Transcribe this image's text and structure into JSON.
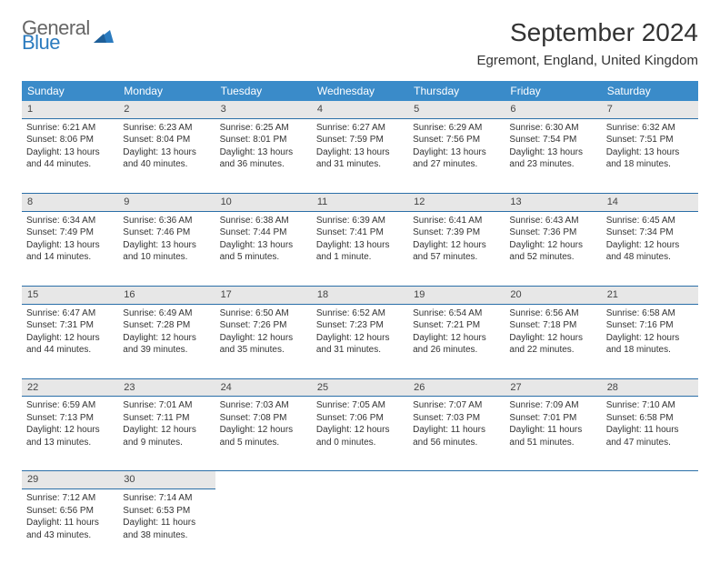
{
  "logo": {
    "line1": "General",
    "line2": "Blue"
  },
  "title": "September 2024",
  "location": "Egremont, England, United Kingdom",
  "colors": {
    "header_bg": "#3a8bc9",
    "daynum_bg": "#e7e7e7",
    "row_border": "#2b6fa8",
    "logo_accent": "#2b7bbf"
  },
  "weekdays": [
    "Sunday",
    "Monday",
    "Tuesday",
    "Wednesday",
    "Thursday",
    "Friday",
    "Saturday"
  ],
  "weeks": [
    {
      "nums": [
        "1",
        "2",
        "3",
        "4",
        "5",
        "6",
        "7"
      ],
      "cells": [
        {
          "sr": "Sunrise: 6:21 AM",
          "ss": "Sunset: 8:06 PM",
          "d1": "Daylight: 13 hours",
          "d2": "and 44 minutes."
        },
        {
          "sr": "Sunrise: 6:23 AM",
          "ss": "Sunset: 8:04 PM",
          "d1": "Daylight: 13 hours",
          "d2": "and 40 minutes."
        },
        {
          "sr": "Sunrise: 6:25 AM",
          "ss": "Sunset: 8:01 PM",
          "d1": "Daylight: 13 hours",
          "d2": "and 36 minutes."
        },
        {
          "sr": "Sunrise: 6:27 AM",
          "ss": "Sunset: 7:59 PM",
          "d1": "Daylight: 13 hours",
          "d2": "and 31 minutes."
        },
        {
          "sr": "Sunrise: 6:29 AM",
          "ss": "Sunset: 7:56 PM",
          "d1": "Daylight: 13 hours",
          "d2": "and 27 minutes."
        },
        {
          "sr": "Sunrise: 6:30 AM",
          "ss": "Sunset: 7:54 PM",
          "d1": "Daylight: 13 hours",
          "d2": "and 23 minutes."
        },
        {
          "sr": "Sunrise: 6:32 AM",
          "ss": "Sunset: 7:51 PM",
          "d1": "Daylight: 13 hours",
          "d2": "and 18 minutes."
        }
      ]
    },
    {
      "nums": [
        "8",
        "9",
        "10",
        "11",
        "12",
        "13",
        "14"
      ],
      "cells": [
        {
          "sr": "Sunrise: 6:34 AM",
          "ss": "Sunset: 7:49 PM",
          "d1": "Daylight: 13 hours",
          "d2": "and 14 minutes."
        },
        {
          "sr": "Sunrise: 6:36 AM",
          "ss": "Sunset: 7:46 PM",
          "d1": "Daylight: 13 hours",
          "d2": "and 10 minutes."
        },
        {
          "sr": "Sunrise: 6:38 AM",
          "ss": "Sunset: 7:44 PM",
          "d1": "Daylight: 13 hours",
          "d2": "and 5 minutes."
        },
        {
          "sr": "Sunrise: 6:39 AM",
          "ss": "Sunset: 7:41 PM",
          "d1": "Daylight: 13 hours",
          "d2": "and 1 minute."
        },
        {
          "sr": "Sunrise: 6:41 AM",
          "ss": "Sunset: 7:39 PM",
          "d1": "Daylight: 12 hours",
          "d2": "and 57 minutes."
        },
        {
          "sr": "Sunrise: 6:43 AM",
          "ss": "Sunset: 7:36 PM",
          "d1": "Daylight: 12 hours",
          "d2": "and 52 minutes."
        },
        {
          "sr": "Sunrise: 6:45 AM",
          "ss": "Sunset: 7:34 PM",
          "d1": "Daylight: 12 hours",
          "d2": "and 48 minutes."
        }
      ]
    },
    {
      "nums": [
        "15",
        "16",
        "17",
        "18",
        "19",
        "20",
        "21"
      ],
      "cells": [
        {
          "sr": "Sunrise: 6:47 AM",
          "ss": "Sunset: 7:31 PM",
          "d1": "Daylight: 12 hours",
          "d2": "and 44 minutes."
        },
        {
          "sr": "Sunrise: 6:49 AM",
          "ss": "Sunset: 7:28 PM",
          "d1": "Daylight: 12 hours",
          "d2": "and 39 minutes."
        },
        {
          "sr": "Sunrise: 6:50 AM",
          "ss": "Sunset: 7:26 PM",
          "d1": "Daylight: 12 hours",
          "d2": "and 35 minutes."
        },
        {
          "sr": "Sunrise: 6:52 AM",
          "ss": "Sunset: 7:23 PM",
          "d1": "Daylight: 12 hours",
          "d2": "and 31 minutes."
        },
        {
          "sr": "Sunrise: 6:54 AM",
          "ss": "Sunset: 7:21 PM",
          "d1": "Daylight: 12 hours",
          "d2": "and 26 minutes."
        },
        {
          "sr": "Sunrise: 6:56 AM",
          "ss": "Sunset: 7:18 PM",
          "d1": "Daylight: 12 hours",
          "d2": "and 22 minutes."
        },
        {
          "sr": "Sunrise: 6:58 AM",
          "ss": "Sunset: 7:16 PM",
          "d1": "Daylight: 12 hours",
          "d2": "and 18 minutes."
        }
      ]
    },
    {
      "nums": [
        "22",
        "23",
        "24",
        "25",
        "26",
        "27",
        "28"
      ],
      "cells": [
        {
          "sr": "Sunrise: 6:59 AM",
          "ss": "Sunset: 7:13 PM",
          "d1": "Daylight: 12 hours",
          "d2": "and 13 minutes."
        },
        {
          "sr": "Sunrise: 7:01 AM",
          "ss": "Sunset: 7:11 PM",
          "d1": "Daylight: 12 hours",
          "d2": "and 9 minutes."
        },
        {
          "sr": "Sunrise: 7:03 AM",
          "ss": "Sunset: 7:08 PM",
          "d1": "Daylight: 12 hours",
          "d2": "and 5 minutes."
        },
        {
          "sr": "Sunrise: 7:05 AM",
          "ss": "Sunset: 7:06 PM",
          "d1": "Daylight: 12 hours",
          "d2": "and 0 minutes."
        },
        {
          "sr": "Sunrise: 7:07 AM",
          "ss": "Sunset: 7:03 PM",
          "d1": "Daylight: 11 hours",
          "d2": "and 56 minutes."
        },
        {
          "sr": "Sunrise: 7:09 AM",
          "ss": "Sunset: 7:01 PM",
          "d1": "Daylight: 11 hours",
          "d2": "and 51 minutes."
        },
        {
          "sr": "Sunrise: 7:10 AM",
          "ss": "Sunset: 6:58 PM",
          "d1": "Daylight: 11 hours",
          "d2": "and 47 minutes."
        }
      ]
    },
    {
      "nums": [
        "29",
        "30",
        "",
        "",
        "",
        "",
        ""
      ],
      "cells": [
        {
          "sr": "Sunrise: 7:12 AM",
          "ss": "Sunset: 6:56 PM",
          "d1": "Daylight: 11 hours",
          "d2": "and 43 minutes."
        },
        {
          "sr": "Sunrise: 7:14 AM",
          "ss": "Sunset: 6:53 PM",
          "d1": "Daylight: 11 hours",
          "d2": "and 38 minutes."
        },
        null,
        null,
        null,
        null,
        null
      ]
    }
  ]
}
